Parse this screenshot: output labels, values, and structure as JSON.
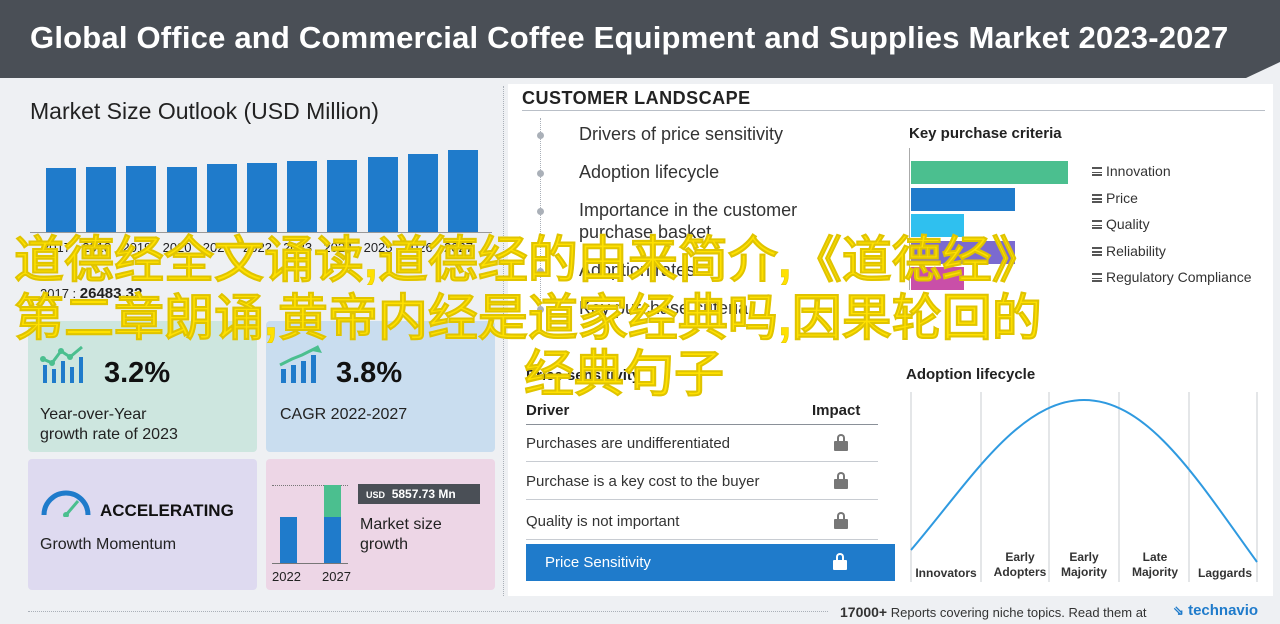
{
  "header": {
    "title": "Global Office and Commercial Coffee Equipment and Supplies Market 2023-2027"
  },
  "market_outlook": {
    "title": "Market Size Outlook (USD Million)",
    "bar_values_relative": [
      0.78,
      0.79,
      0.8,
      0.79,
      0.83,
      0.84,
      0.86,
      0.88,
      0.91,
      0.95,
      1.0
    ],
    "year_labels": [
      "2017",
      "2018",
      "2019",
      "2020",
      "2021",
      "2022",
      "2023",
      "2024",
      "2025",
      "2026",
      "2027"
    ],
    "base_year_label": "2017 :",
    "base_year_value": "26483.32"
  },
  "cards": {
    "yoy": {
      "value": "3.2%",
      "label_line1": "Year-over-Year",
      "label_line2": "growth rate of 2023"
    },
    "cagr": {
      "value": "3.8%",
      "label": "CAGR  2022-2027"
    },
    "momentum": {
      "title": "ACCELERATING",
      "label": "Growth Momentum"
    },
    "growth": {
      "currency": "USD",
      "value": "5857.73 Mn",
      "label_line1": "Market size",
      "label_line2": "growth",
      "year_start": "2022",
      "year_end": "2027"
    }
  },
  "customer_landscape": {
    "title": "CUSTOMER  LANDSCAPE",
    "drivers": [
      "Drivers of price sensitivity",
      "Adoption lifecycle",
      "Importance in the customer",
      "purchase basket",
      "Adoption rates",
      "Key purchase criteria"
    ]
  },
  "key_purchase_criteria": {
    "title": "Key purchase criteria",
    "items": [
      {
        "label": "Innovation",
        "color": "#4bbf8f",
        "value": 1.0
      },
      {
        "label": "Price",
        "color": "#1f7bcb",
        "value": 0.66
      },
      {
        "label": "Quality",
        "color": "#2fc0ef",
        "value": 0.34
      },
      {
        "label": "Reliability",
        "color": "#7b6ad0",
        "value": 0.66
      },
      {
        "label": "Regulatory Compliance",
        "color": "#c94fa8",
        "value": 0.34
      }
    ]
  },
  "price_sensitivity": {
    "title": "Price sensitivity",
    "col_driver": "Driver",
    "col_impact": "Impact",
    "rows": [
      "Purchases are undifferentiated",
      "Purchase is a key cost to the buyer",
      "Quality is not important",
      "Price Sensitivity"
    ]
  },
  "adoption_lifecycle": {
    "title": "Adoption lifecycle",
    "stages": [
      {
        "line1": "Innovators",
        "line2": ""
      },
      {
        "line1": "Early",
        "line2": "Adopters"
      },
      {
        "line1": "Early",
        "line2": "Majority"
      },
      {
        "line1": "Late",
        "line2": "Majority"
      },
      {
        "line1": "Laggards",
        "line2": ""
      }
    ]
  },
  "footer": {
    "count": "17000+",
    "text": "Reports covering niche topics. Read them at",
    "brand": "technavio"
  },
  "overlay": {
    "line1": "道德经全文诵读,道德经的由来简介,《道德经》",
    "line2": "第二章朗诵,黄帝内经是道家经典吗,因果轮回的",
    "line3": "经典句子"
  }
}
